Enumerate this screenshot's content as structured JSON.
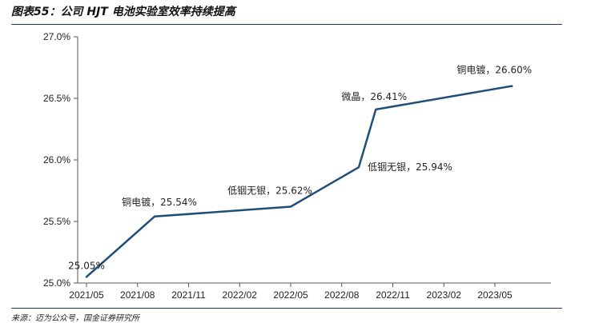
{
  "figure": {
    "title": "图表55：公司 HJT 电池实验室效率持续提高",
    "source": "来源：迈为公众号，国金证券研究所"
  },
  "chart_data": {
    "type": "line",
    "title": "",
    "xlabel": "",
    "ylabel": "",
    "x_tick_labels": [
      "2021/05",
      "2021/08",
      "2021/11",
      "2022/02",
      "2022/05",
      "2022/08",
      "2022/11",
      "2023/02",
      "2023/05"
    ],
    "y_tick_labels": [
      "25.0%",
      "25.5%",
      "26.0%",
      "26.5%",
      "27.0%"
    ],
    "ylim": [
      25.0,
      27.0
    ],
    "grid": false,
    "color": "#1f4e79",
    "series": [
      {
        "points": [
          {
            "x": "2021/05",
            "y": 25.05,
            "label": "25.05%"
          },
          {
            "x": "2021/09",
            "y": 25.54,
            "label": "铜电镀，25.54%"
          },
          {
            "x": "2022/05",
            "y": 25.62,
            "label": "低铟无银，25.62%"
          },
          {
            "x": "2022/09",
            "y": 25.94,
            "label": "低铟无银，25.94%"
          },
          {
            "x": "2022/10",
            "y": 26.41,
            "label": "微晶，26.41%"
          },
          {
            "x": "2023/06",
            "y": 26.6,
            "label": "铜电镀，26.60%"
          }
        ]
      }
    ]
  }
}
